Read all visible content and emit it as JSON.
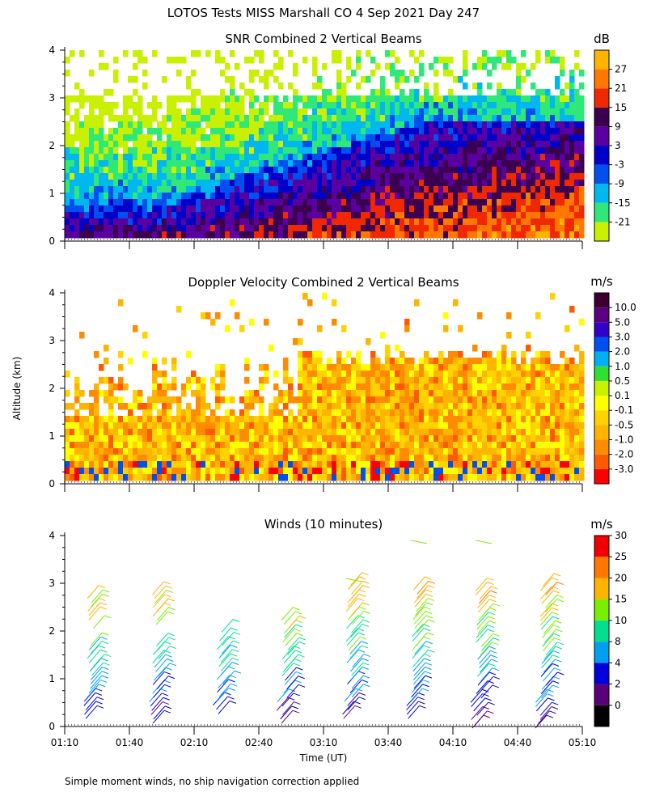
{
  "figure_title": "LOTOS Tests MISS Marshall CO    4 Sep 2021 Day 247",
  "footnote": "Simple moment winds, no ship navigation correction applied",
  "chart_data": [
    {
      "type": "heatmap",
      "title": "SNR Combined 2 Vertical Beams",
      "ylabel": "",
      "xlabel": "",
      "yticks": [
        "0",
        "1",
        "2",
        "3",
        "4"
      ],
      "ylim": [
        0,
        4
      ],
      "xlim": [
        "01:10",
        "05:10"
      ],
      "colorbar_unit": "dB",
      "colorbar_labels": [
        "-21",
        "-15",
        "-9",
        "-3",
        "3",
        "9",
        "15",
        "21",
        "27"
      ],
      "colorbar_colors": [
        "#c8f000",
        "#30e878",
        "#00b8f0",
        "#0050f0",
        "#0000c8",
        "#5a00a0",
        "#3c0050",
        "#f02800",
        "#ff7800",
        "#ffb400"
      ],
      "data_start_altitude_km": 0.2,
      "description": "SNR high (9 to 27 dB) near surface after 02:30, decreasing with altitude; weak echoes above 3 km"
    },
    {
      "type": "heatmap",
      "title": "Doppler Velocity Combined 2 Vertical Beams",
      "ylabel": "Altitude (km)",
      "xlabel": "",
      "yticks": [
        "0",
        "1",
        "2",
        "3",
        "4"
      ],
      "ylim": [
        0,
        4
      ],
      "xlim": [
        "01:10",
        "05:10"
      ],
      "colorbar_unit": "m/s",
      "colorbar_labels": [
        "-3.0",
        "-2.0",
        "-1.0",
        "-0.5",
        "-0.1",
        "0.1",
        "0.5",
        "1.0",
        "2.0",
        "3.0",
        "5.0",
        "10.0"
      ],
      "colorbar_colors": [
        "#ff0000",
        "#ff5a00",
        "#ff8c00",
        "#ffb400",
        "#ffd200",
        "#ffff00",
        "#c8f000",
        "#30e030",
        "#00b0f0",
        "#0050f0",
        "#3200c8",
        "#5a0080",
        "#3c0030"
      ],
      "data_start_altitude_km": 0.2,
      "description": "Mostly -1.0 to 0.5 m/s (orange/yellow) up to about 2.8 km"
    },
    {
      "type": "scatter",
      "subtype": "wind_barbs",
      "title": "Winds (10 minutes)",
      "ylabel": "",
      "xlabel": "Time (UT)",
      "yticks": [
        "0",
        "1",
        "2",
        "3",
        "4"
      ],
      "ylim": [
        0,
        4
      ],
      "xticks": [
        "01:10",
        "01:40",
        "02:10",
        "02:40",
        "03:10",
        "03:40",
        "04:10",
        "04:40",
        "05:10"
      ],
      "xlim": [
        "01:10",
        "05:10"
      ],
      "colorbar_unit": "m/s",
      "colorbar_labels": [
        "0",
        "2",
        "4",
        "8",
        "10",
        "15",
        "20",
        "25",
        "30"
      ],
      "colorbar_colors": [
        "#000000",
        "#5a007a",
        "#0000dc",
        "#00a0f0",
        "#00e090",
        "#78f000",
        "#ffb400",
        "#ff7800",
        "#f00000"
      ],
      "profile_times": [
        "01:25",
        "01:55",
        "02:25",
        "02:55",
        "03:25",
        "03:55",
        "04:25",
        "04:55"
      ],
      "profile_ranges_km": [
        [
          0.3,
          2.9
        ],
        [
          0.2,
          2.9
        ],
        [
          0.4,
          2.2
        ],
        [
          0.2,
          2.4
        ],
        [
          0.3,
          3.1
        ],
        [
          0.3,
          3.0
        ],
        [
          0.1,
          3.0
        ],
        [
          0.1,
          3.1
        ]
      ]
    }
  ]
}
